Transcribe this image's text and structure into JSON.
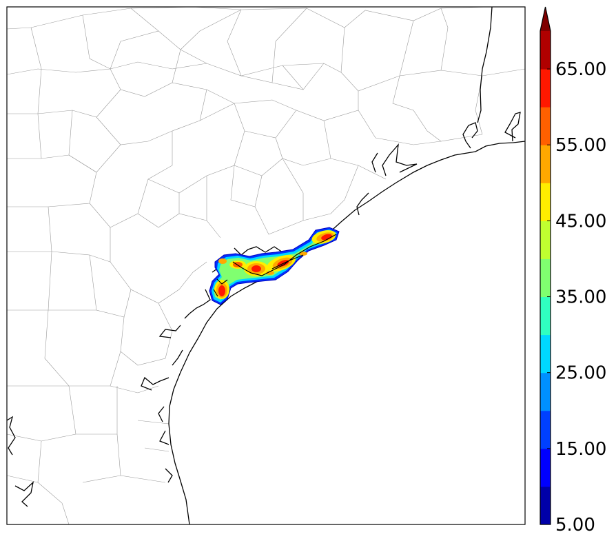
{
  "map": {
    "region": "Texas Gulf Coast",
    "field": "contoured intensity swath",
    "background": "#ffffff",
    "county_line_color": "#9a9a9a",
    "coastline_color": "#000000",
    "swath_centers": [
      {
        "name": "west-cluster"
      },
      {
        "name": "central-cluster"
      },
      {
        "name": "east-cluster"
      }
    ]
  },
  "colorbar": {
    "min": 5,
    "max": 70,
    "extend": "max",
    "levels": [
      5,
      10,
      15,
      20,
      25,
      30,
      35,
      40,
      45,
      50,
      55,
      60,
      65,
      70
    ],
    "colors": [
      "#0000a8",
      "#0000ff",
      "#0040ff",
      "#0090ff",
      "#00d8ff",
      "#30ffc0",
      "#80ff70",
      "#c0ff30",
      "#ffee00",
      "#ffa800",
      "#ff6000",
      "#ff1800",
      "#b00000"
    ],
    "extend_color": "#800000",
    "tick_labels": [
      "5.00",
      "15.00",
      "25.00",
      "35.00",
      "45.00",
      "55.00",
      "65.00"
    ]
  }
}
